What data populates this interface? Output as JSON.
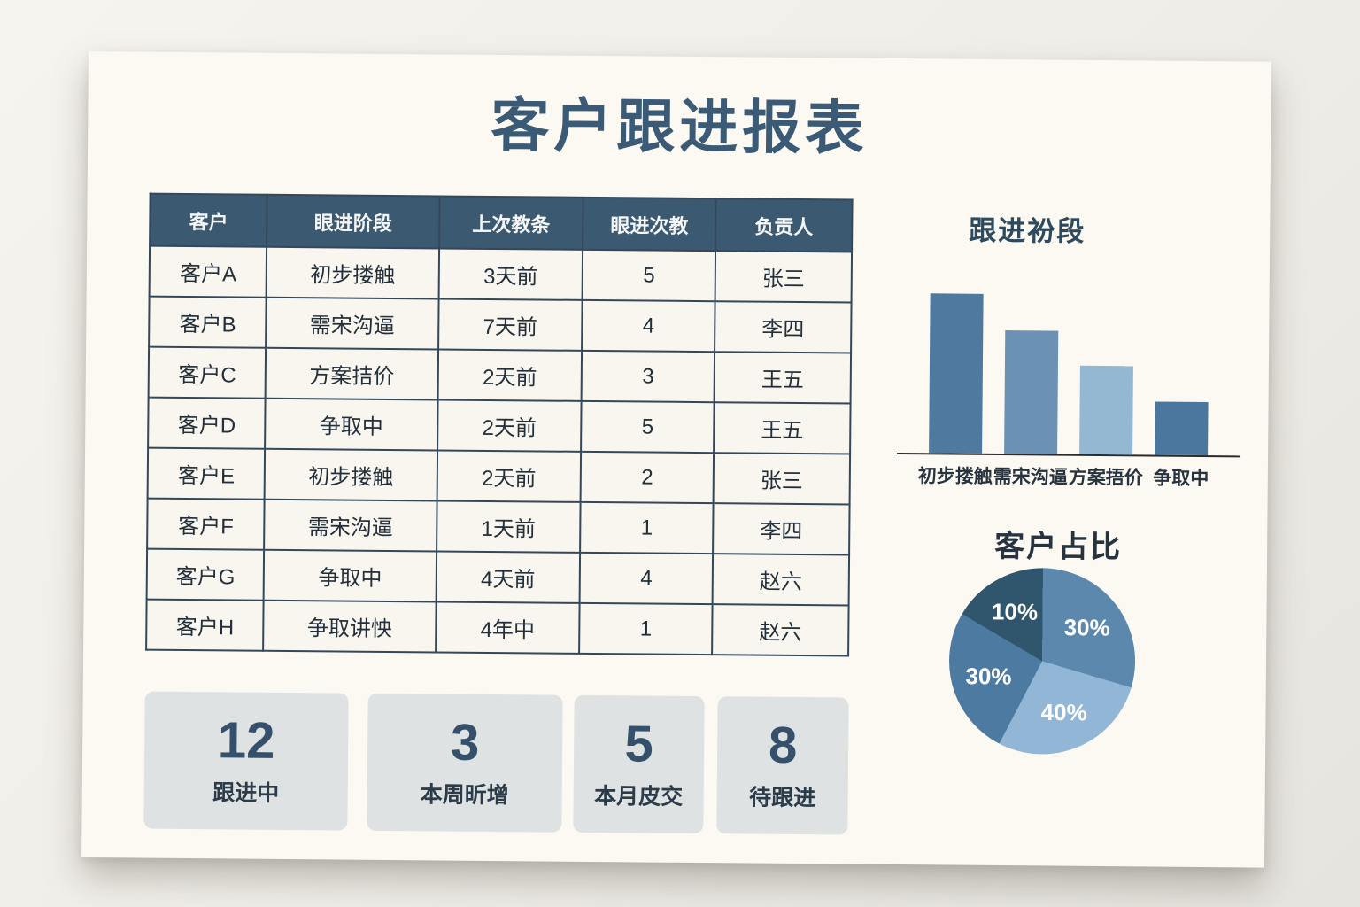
{
  "title": "客户跟进报表",
  "colors": {
    "page_bg": "#efede7",
    "poster_bg": "#fbf9f2",
    "accent_dark": "#3a5a75",
    "table_header_bg": "#3b5971",
    "table_border": "#33485a",
    "cell_bg": "#f8f6ef",
    "stat_card_bg": "#dee2e2"
  },
  "table": {
    "headers": [
      "客户",
      "眼进阶段",
      "上次教条",
      "眼进次教",
      "负贡人"
    ],
    "rows": [
      [
        "客户A",
        "初步搂触",
        "3天前",
        "5",
        "张三"
      ],
      [
        "客户B",
        "需宋沟逼",
        "7天前",
        "4",
        "李四"
      ],
      [
        "客户C",
        "方案拮价",
        "2天前",
        "3",
        "王五"
      ],
      [
        "客户D",
        "争取中",
        "2天前",
        "5",
        "王五"
      ],
      [
        "客户E",
        "初步搂触",
        "2天前",
        "2",
        "张三"
      ],
      [
        "客户F",
        "需宋沟逼",
        "1天前",
        "1",
        "李四"
      ],
      [
        "客户G",
        "争取中",
        "4天前",
        "4",
        "赵六"
      ],
      [
        "客户H",
        "争取讲怏",
        "4年中",
        "1",
        "赵六"
      ]
    ]
  },
  "stats": [
    {
      "value": "12",
      "label": "跟进中"
    },
    {
      "value": "3",
      "label": "本周昕增"
    },
    {
      "value": "5",
      "label": "本月皮交"
    },
    {
      "value": "8",
      "label": "待跟进"
    }
  ],
  "chart_data": [
    {
      "type": "bar",
      "title": "跟进衯段",
      "categories": [
        "初步搂触",
        "需宋沟逼",
        "方案捂价",
        "争取中"
      ],
      "values": [
        180,
        139,
        100,
        60
      ],
      "ylim": [
        0,
        200
      ],
      "xlabel": "",
      "ylabel": "",
      "grid": false,
      "bar_colors": [
        "#50799f",
        "#6b91b4",
        "#95b8d2",
        "#4b769d"
      ]
    },
    {
      "type": "pie",
      "title": "客户占比",
      "labels": [
        "30%",
        "40%",
        "30%",
        "10%"
      ],
      "values": [
        30,
        40,
        30,
        10
      ],
      "colors": [
        "#5d88ae",
        "#92b6d5",
        "#4d7aa0",
        "#2f566c"
      ],
      "start_angles_deg": [
        0,
        106,
        207,
        300
      ],
      "end_angles_deg": [
        106,
        207,
        300,
        360
      ]
    }
  ]
}
